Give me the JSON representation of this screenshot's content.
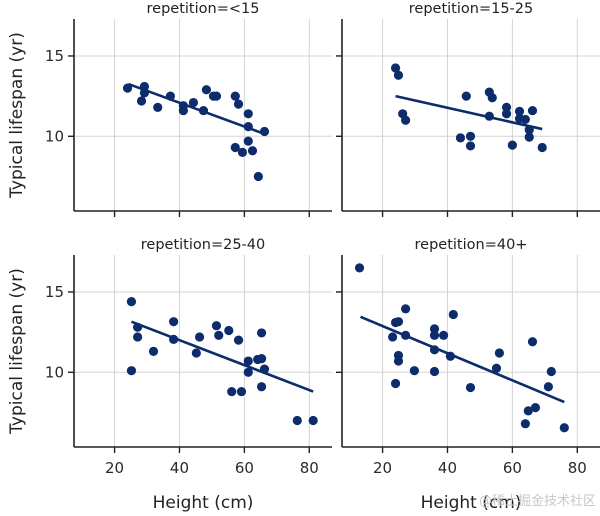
{
  "chart_data": {
    "type": "scatter",
    "layout": "2x2 facet grid",
    "xlabel": "Height (cm)",
    "ylabel": "Typical lifespan (yr)",
    "xlim": [
      7.5,
      87
    ],
    "ylim": [
      5.35,
      17.3
    ],
    "xticks": [
      20,
      40,
      60,
      80
    ],
    "yticks": [
      10,
      15
    ],
    "grid": true,
    "point_color": "#0d2c6b",
    "watermark": "@稀土掘金技术社区",
    "panels": [
      {
        "title": "repetition=<15",
        "points": [
          [
            24,
            13.0
          ],
          [
            29.2,
            13.1
          ],
          [
            29.2,
            12.7
          ],
          [
            28.3,
            12.2
          ],
          [
            33.3,
            11.8
          ],
          [
            37.2,
            12.5
          ],
          [
            41.2,
            11.9
          ],
          [
            41.2,
            11.6
          ],
          [
            44.3,
            12.1
          ],
          [
            47.4,
            11.6
          ],
          [
            48.3,
            12.9
          ],
          [
            50.5,
            12.5
          ],
          [
            51.4,
            12.5
          ],
          [
            57.2,
            12.5
          ],
          [
            58.2,
            12.0
          ],
          [
            61.2,
            11.4
          ],
          [
            61.2,
            10.6
          ],
          [
            61.2,
            9.7
          ],
          [
            57.2,
            9.3
          ],
          [
            59.4,
            9.0
          ],
          [
            62.5,
            9.1
          ],
          [
            66.2,
            10.3
          ],
          [
            64.3,
            7.5
          ]
        ],
        "fit_line": [
          [
            24.3,
            13.25
          ],
          [
            65.5,
            10.2
          ]
        ]
      },
      {
        "title": "repetition=15-25",
        "points": [
          [
            24,
            14.25
          ],
          [
            24.9,
            13.8
          ],
          [
            26.2,
            11.4
          ],
          [
            27.1,
            11.0
          ],
          [
            45.8,
            12.5
          ],
          [
            44,
            9.9
          ],
          [
            47.1,
            10.0
          ],
          [
            47.1,
            9.4
          ],
          [
            52.9,
            12.75
          ],
          [
            53.8,
            12.4
          ],
          [
            52.9,
            11.25
          ],
          [
            58.2,
            11.8
          ],
          [
            58.2,
            11.4
          ],
          [
            60,
            9.45
          ],
          [
            62.2,
            11.55
          ],
          [
            62.2,
            11.1
          ],
          [
            64,
            11.05
          ],
          [
            66.2,
            11.6
          ],
          [
            65.2,
            10.4
          ],
          [
            65.2,
            9.95
          ],
          [
            69.2,
            9.3
          ]
        ],
        "fit_line": [
          [
            24,
            12.5
          ],
          [
            69.2,
            10.45
          ]
        ]
      },
      {
        "title": "repetition=25-40",
        "points": [
          [
            25.2,
            14.4
          ],
          [
            25.2,
            10.1
          ],
          [
            27.1,
            12.8
          ],
          [
            27.1,
            12.2
          ],
          [
            32,
            11.3
          ],
          [
            38.2,
            13.15
          ],
          [
            38.2,
            12.05
          ],
          [
            45.2,
            11.2
          ],
          [
            46.2,
            12.2
          ],
          [
            51.4,
            12.9
          ],
          [
            52.1,
            12.3
          ],
          [
            55.2,
            12.6
          ],
          [
            58.2,
            12.0
          ],
          [
            56.1,
            8.8
          ],
          [
            59.1,
            8.8
          ],
          [
            61.2,
            10.7
          ],
          [
            61.2,
            10.0
          ],
          [
            64.1,
            10.8
          ],
          [
            65.3,
            10.85
          ],
          [
            65.3,
            12.45
          ],
          [
            66.2,
            10.2
          ],
          [
            65.3,
            9.1
          ],
          [
            76.3,
            7.0
          ],
          [
            81.2,
            7.0
          ]
        ],
        "fit_line": [
          [
            25.2,
            13.15
          ],
          [
            81.2,
            8.8
          ]
        ]
      },
      {
        "title": "repetition=40+",
        "points": [
          [
            12.9,
            16.5
          ],
          [
            27.1,
            13.95
          ],
          [
            24,
            13.1
          ],
          [
            24.9,
            13.15
          ],
          [
            23.1,
            12.2
          ],
          [
            27.1,
            12.3
          ],
          [
            24.9,
            11.05
          ],
          [
            24.9,
            10.7
          ],
          [
            24,
            9.3
          ],
          [
            29.8,
            10.1
          ],
          [
            36,
            12.7
          ],
          [
            36,
            12.3
          ],
          [
            38.8,
            12.3
          ],
          [
            41.8,
            13.6
          ],
          [
            36,
            11.4
          ],
          [
            36,
            10.05
          ],
          [
            40.9,
            11.0
          ],
          [
            47.1,
            9.05
          ],
          [
            55.1,
            10.25
          ],
          [
            56,
            11.2
          ],
          [
            66.2,
            11.9
          ],
          [
            72,
            10.05
          ],
          [
            71.1,
            9.1
          ],
          [
            64.9,
            7.6
          ],
          [
            67.1,
            7.8
          ],
          [
            64,
            6.8
          ],
          [
            76,
            6.55
          ]
        ],
        "fit_line": [
          [
            13.2,
            13.45
          ],
          [
            76,
            8.15
          ]
        ]
      }
    ]
  }
}
